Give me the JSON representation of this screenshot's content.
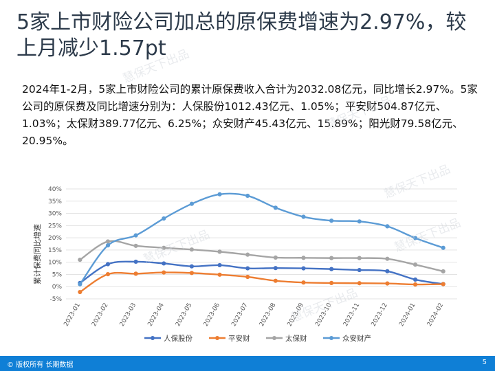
{
  "header": {
    "title": "5家上市财险公司加总的原保费增速为2.97%，较上月减少1.57pt"
  },
  "summary": {
    "text": "2024年1-2月，5家上市财险公司的累计原保费收入合计为2032.08亿元，同比增长2.97%。5家公司的原保费及同比增速分别为：人保股份1012.43亿元、1.05%；平安财504.87亿元、1.03%；太保财389.77亿元、6.25%；众安财产45.43亿元、15.89%；阳光财79.58亿元、20.95%。"
  },
  "watermark": {
    "text": "慧保天下出品"
  },
  "footer": {
    "copyright": "© 版权所有 长期数据",
    "page_number": "5",
    "bar_color": "#0f7fd6"
  },
  "chart_data": {
    "type": "line",
    "ylabel": "累计保费同比增速",
    "xlabel": "",
    "ylim": [
      -5,
      40
    ],
    "y_ticks": [
      "-5%",
      "0%",
      "5%",
      "10%",
      "15%",
      "20%",
      "25%",
      "30%",
      "35%",
      "40%"
    ],
    "categories": [
      "2023-01",
      "2023-02",
      "2023-03",
      "2023-04",
      "2023-05",
      "2023-06",
      "2023-07",
      "2023-08",
      "2023-09",
      "2023-10",
      "2023-11",
      "2023-12",
      "2024-01",
      "2024-02"
    ],
    "legend_position": "bottom",
    "grid": true,
    "series": [
      {
        "name": "人保股份",
        "color": "#4472c4",
        "values": [
          1.5,
          9.2,
          10.2,
          9.5,
          8.3,
          8.8,
          7.5,
          7.6,
          7.5,
          7.2,
          6.8,
          6.3,
          2.9,
          1.05
        ]
      },
      {
        "name": "平安财",
        "color": "#ed7d31",
        "values": [
          -2.2,
          5.1,
          5.3,
          5.8,
          5.6,
          4.9,
          4.0,
          2.4,
          1.7,
          1.5,
          1.4,
          1.3,
          0.9,
          1.03
        ]
      },
      {
        "name": "太保财",
        "color": "#a5a5a5",
        "values": [
          11.0,
          18.5,
          16.7,
          15.9,
          15.2,
          14.3,
          13.1,
          11.9,
          11.8,
          11.7,
          11.7,
          11.4,
          9.0,
          6.25
        ]
      },
      {
        "name": "众安财产",
        "color": "#5b9bd5",
        "values": [
          1.0,
          16.9,
          21.0,
          27.9,
          33.9,
          37.8,
          37.2,
          32.3,
          28.6,
          27.0,
          26.7,
          24.7,
          19.9,
          15.89
        ]
      }
    ]
  }
}
